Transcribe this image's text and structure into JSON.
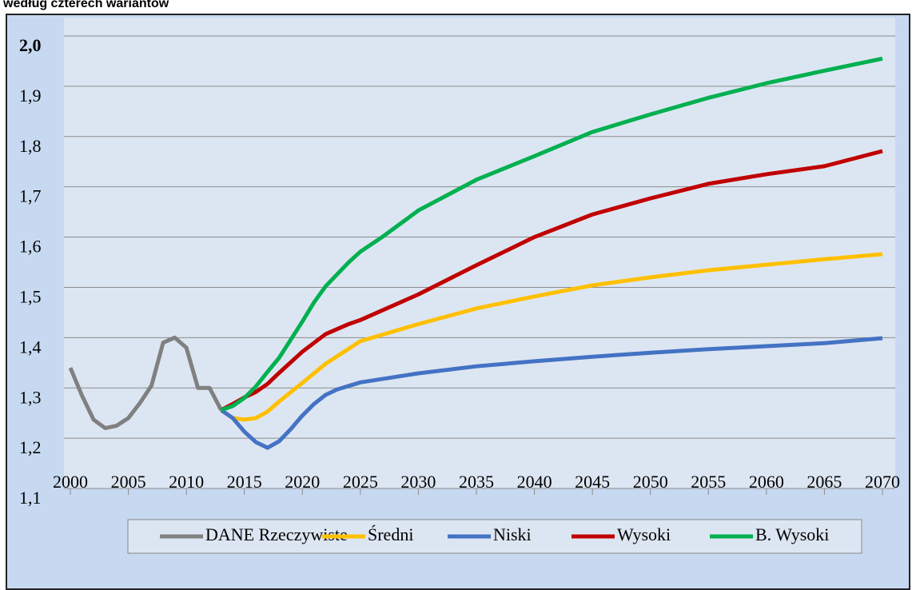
{
  "chart_data": {
    "type": "line",
    "title": "według czterech wariantów",
    "xlim": [
      2000,
      2070
    ],
    "xticks": [
      2000,
      2005,
      2010,
      2015,
      2020,
      2025,
      2030,
      2035,
      2040,
      2045,
      2050,
      2055,
      2060,
      2065,
      2070
    ],
    "ylim": [
      1.1,
      2.0
    ],
    "yticks": [
      {
        "value": 1.1,
        "label": "1,1"
      },
      {
        "value": 1.2,
        "label": "1,2"
      },
      {
        "value": 1.3,
        "label": "1,3"
      },
      {
        "value": 1.4,
        "label": "1,4"
      },
      {
        "value": 1.5,
        "label": "1,5"
      },
      {
        "value": 1.6,
        "label": "1,6"
      },
      {
        "value": 1.7,
        "label": "1,7"
      },
      {
        "value": 1.8,
        "label": "1,8"
      },
      {
        "value": 1.9,
        "label": "1,9"
      },
      {
        "value": 2.0,
        "label": "2,0"
      }
    ],
    "grid": true,
    "legend": "bottom",
    "series": [
      {
        "name": "DANE Rzeczywiste",
        "color": "#808080",
        "x": [
          2000,
          2001,
          2002,
          2003,
          2004,
          2005,
          2006,
          2007,
          2008,
          2009,
          2010,
          2011,
          2012,
          2013
        ],
        "values": [
          1.34,
          1.285,
          1.237,
          1.22,
          1.225,
          1.24,
          1.27,
          1.305,
          1.39,
          1.4,
          1.38,
          1.3,
          1.3,
          1.256
        ]
      },
      {
        "name": "Średni",
        "color": "#ffc000",
        "x": [
          2013,
          2014,
          2015,
          2016,
          2017,
          2018,
          2020,
          2022,
          2025,
          2030,
          2035,
          2040,
          2045,
          2050,
          2055,
          2060,
          2065,
          2070
        ],
        "values": [
          1.256,
          1.24,
          1.237,
          1.24,
          1.253,
          1.273,
          1.31,
          1.348,
          1.393,
          1.427,
          1.458,
          1.482,
          1.504,
          1.52,
          1.534,
          1.545,
          1.556,
          1.566
        ]
      },
      {
        "name": "Niski",
        "color": "#4472c4",
        "x": [
          2013,
          2014,
          2015,
          2016,
          2017,
          2018,
          2019,
          2020,
          2021,
          2022,
          2023,
          2025,
          2030,
          2035,
          2040,
          2045,
          2050,
          2055,
          2060,
          2065,
          2070
        ],
        "values": [
          1.256,
          1.24,
          1.213,
          1.192,
          1.181,
          1.194,
          1.218,
          1.245,
          1.268,
          1.286,
          1.297,
          1.311,
          1.329,
          1.343,
          1.353,
          1.362,
          1.37,
          1.377,
          1.383,
          1.389,
          1.399
        ]
      },
      {
        "name": "Wysoki",
        "color": "#c00000",
        "x": [
          2013,
          2014,
          2015,
          2016,
          2017,
          2018,
          2020,
          2022,
          2024,
          2025,
          2030,
          2035,
          2040,
          2045,
          2050,
          2055,
          2060,
          2065,
          2070
        ],
        "values": [
          1.256,
          1.268,
          1.281,
          1.292,
          1.308,
          1.33,
          1.372,
          1.407,
          1.427,
          1.435,
          1.486,
          1.544,
          1.6,
          1.645,
          1.677,
          1.706,
          1.725,
          1.741,
          1.771
        ]
      },
      {
        "name": "B. Wysoki",
        "color": "#00b050",
        "x": [
          2013,
          2014,
          2015,
          2016,
          2017,
          2018,
          2019,
          2020,
          2021,
          2022,
          2024,
          2025,
          2027,
          2030,
          2035,
          2040,
          2045,
          2050,
          2055,
          2060,
          2065,
          2070
        ],
        "values": [
          1.256,
          1.264,
          1.28,
          1.303,
          1.332,
          1.36,
          1.396,
          1.432,
          1.47,
          1.502,
          1.55,
          1.571,
          1.602,
          1.653,
          1.714,
          1.761,
          1.809,
          1.844,
          1.877,
          1.906,
          1.931,
          1.955
        ]
      }
    ]
  }
}
